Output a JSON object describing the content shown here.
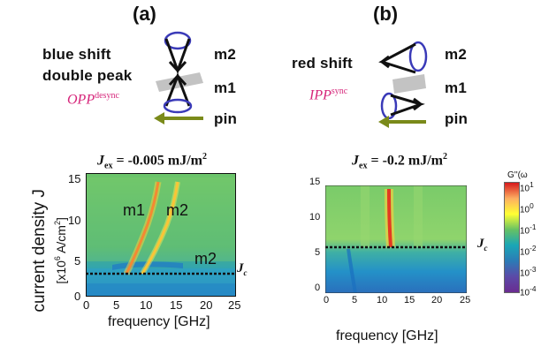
{
  "panels": {
    "a": {
      "label": "(a)",
      "desc_line1": "blue shift",
      "desc_line2": "double peak",
      "mode_main": "OPP",
      "mode_sup": "desync",
      "layers": [
        "m2",
        "m1",
        "pin"
      ],
      "jex_prefix": "J",
      "jex_sub": "ex",
      "jex_value": " = -0.005 mJ/m",
      "jex_exp": "2",
      "plot_labels": [
        "m1",
        "m2",
        "m2"
      ],
      "jc_main": "J",
      "jc_sub": "c"
    },
    "b": {
      "label": "(b)",
      "desc_line1": "red shift",
      "mode_main": "IPP",
      "mode_sup": "sync",
      "layers": [
        "m2",
        "m1",
        "pin"
      ],
      "jex_prefix": "J",
      "jex_sub": "ex",
      "jex_value": " = -0.2 mJ/m",
      "jex_exp": "2",
      "jc_main": "J",
      "jc_sub": "c"
    }
  },
  "axes": {
    "ylabel_line1": "current density J",
    "ylabel_line2": "[x10",
    "ylabel_exp": "6",
    "ylabel_tail": " A/cm",
    "ylabel_exp2": "2",
    "ylabel_end": "]",
    "xlabel": "frequency [GHz]",
    "xticks": [
      "0",
      "5",
      "10",
      "15",
      "20",
      "25"
    ],
    "yticks": [
      "0",
      "5",
      "10",
      "15"
    ]
  },
  "colorbar": {
    "title": "G''(ω",
    "ticks": [
      "10",
      "10",
      "10",
      "10",
      "10",
      "10"
    ],
    "exps": [
      "1",
      "0",
      "-1",
      "-2",
      "-3",
      "-4"
    ],
    "colors": [
      "#d7191c",
      "#fdae61",
      "#ffff33",
      "#66c164",
      "#1aa6b6",
      "#2c7bb6",
      "#5b4aa8",
      "#6a2c91"
    ]
  },
  "chart_data": [
    {
      "type": "heatmap",
      "title": "Jex = -0.005 mJ/m2",
      "xlabel": "frequency [GHz]",
      "ylabel": "current density J [x10^6 A/cm^2]",
      "xlim": [
        0,
        25
      ],
      "ylim": [
        0,
        15
      ],
      "threshold_Jc": 2.3,
      "ridges": [
        {
          "name": "m1",
          "points": [
            [
              6,
              2.5
            ],
            [
              8,
              6
            ],
            [
              10,
              10
            ],
            [
              11.5,
              13.5
            ]
          ]
        },
        {
          "name": "m2",
          "points": [
            [
              9,
              2.5
            ],
            [
              11,
              6
            ],
            [
              13,
              10
            ],
            [
              14,
              13.5
            ]
          ]
        }
      ]
    },
    {
      "type": "heatmap",
      "title": "Jex = -0.2 mJ/m2",
      "xlabel": "frequency [GHz]",
      "xlim": [
        0,
        25
      ],
      "ylim": [
        0,
        15
      ],
      "threshold_Jc": 5.1,
      "ridges": [
        {
          "name": "",
          "points": [
            [
              12.5,
              5.1
            ],
            [
              12,
              9
            ],
            [
              11.8,
              13.8
            ]
          ]
        }
      ]
    }
  ]
}
